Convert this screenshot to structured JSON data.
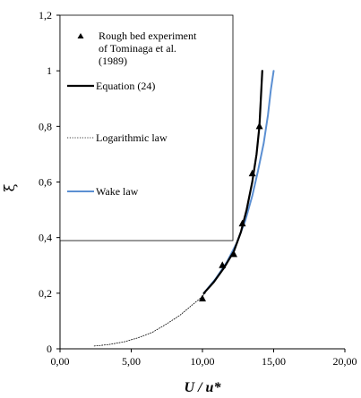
{
  "chart_data": {
    "type": "line",
    "xlabel": "U / u*",
    "ylabel": "ξ",
    "xlim": [
      0,
      20
    ],
    "ylim": [
      0,
      1.2
    ],
    "x_ticks": [
      "0,00",
      "5,00",
      "10,00",
      "15,00",
      "20,00"
    ],
    "y_ticks": [
      "0",
      "0,2",
      "0,4",
      "0,6",
      "0,8",
      "1",
      "1,2"
    ],
    "grid": false,
    "legend_position": "top-left",
    "series": [
      {
        "name": "Rough bed experiment of Tominaga et al. (1989)",
        "kind": "scatter",
        "marker": "triangle",
        "color": "#000000",
        "points": [
          [
            10.0,
            0.18
          ],
          [
            11.4,
            0.3
          ],
          [
            12.2,
            0.34
          ],
          [
            12.8,
            0.45
          ],
          [
            13.5,
            0.63
          ],
          [
            14.0,
            0.8
          ]
        ]
      },
      {
        "name": "Equation (24)",
        "kind": "line",
        "color": "#000000",
        "style": "solid-thick",
        "points": [
          [
            10.1,
            0.2
          ],
          [
            10.8,
            0.24
          ],
          [
            11.5,
            0.29
          ],
          [
            12.2,
            0.35
          ],
          [
            12.7,
            0.42
          ],
          [
            13.1,
            0.5
          ],
          [
            13.5,
            0.6
          ],
          [
            13.8,
            0.7
          ],
          [
            14.0,
            0.8
          ],
          [
            14.1,
            0.9
          ],
          [
            14.2,
            1.0
          ]
        ]
      },
      {
        "name": "Logarithmic law",
        "kind": "line",
        "color": "#000000",
        "style": "dotted-thin",
        "points": [
          [
            2.4,
            0.01
          ],
          [
            3.4,
            0.015
          ],
          [
            4.5,
            0.025
          ],
          [
            5.5,
            0.04
          ],
          [
            6.5,
            0.06
          ],
          [
            7.5,
            0.09
          ],
          [
            8.4,
            0.12
          ],
          [
            9.1,
            0.15
          ],
          [
            9.8,
            0.18
          ],
          [
            10.2,
            0.2
          ]
        ]
      },
      {
        "name": "Wake law",
        "kind": "line",
        "color": "#5b8fd2",
        "style": "solid",
        "points": [
          [
            10.1,
            0.2
          ],
          [
            10.9,
            0.25
          ],
          [
            11.7,
            0.31
          ],
          [
            12.4,
            0.38
          ],
          [
            13.0,
            0.46
          ],
          [
            13.5,
            0.55
          ],
          [
            13.9,
            0.64
          ],
          [
            14.3,
            0.74
          ],
          [
            14.6,
            0.84
          ],
          [
            14.8,
            0.93
          ],
          [
            15.0,
            1.0
          ]
        ]
      }
    ],
    "legend": {
      "items": [
        {
          "label_lines": [
            "Rough bed experiment",
            "of Tominaga et al.",
            "(1989)"
          ]
        },
        {
          "label_lines": [
            "Equation (24)"
          ]
        },
        {
          "label_lines": [
            "Logarithmic law"
          ]
        },
        {
          "label_lines": [
            "Wake law"
          ]
        }
      ]
    }
  }
}
